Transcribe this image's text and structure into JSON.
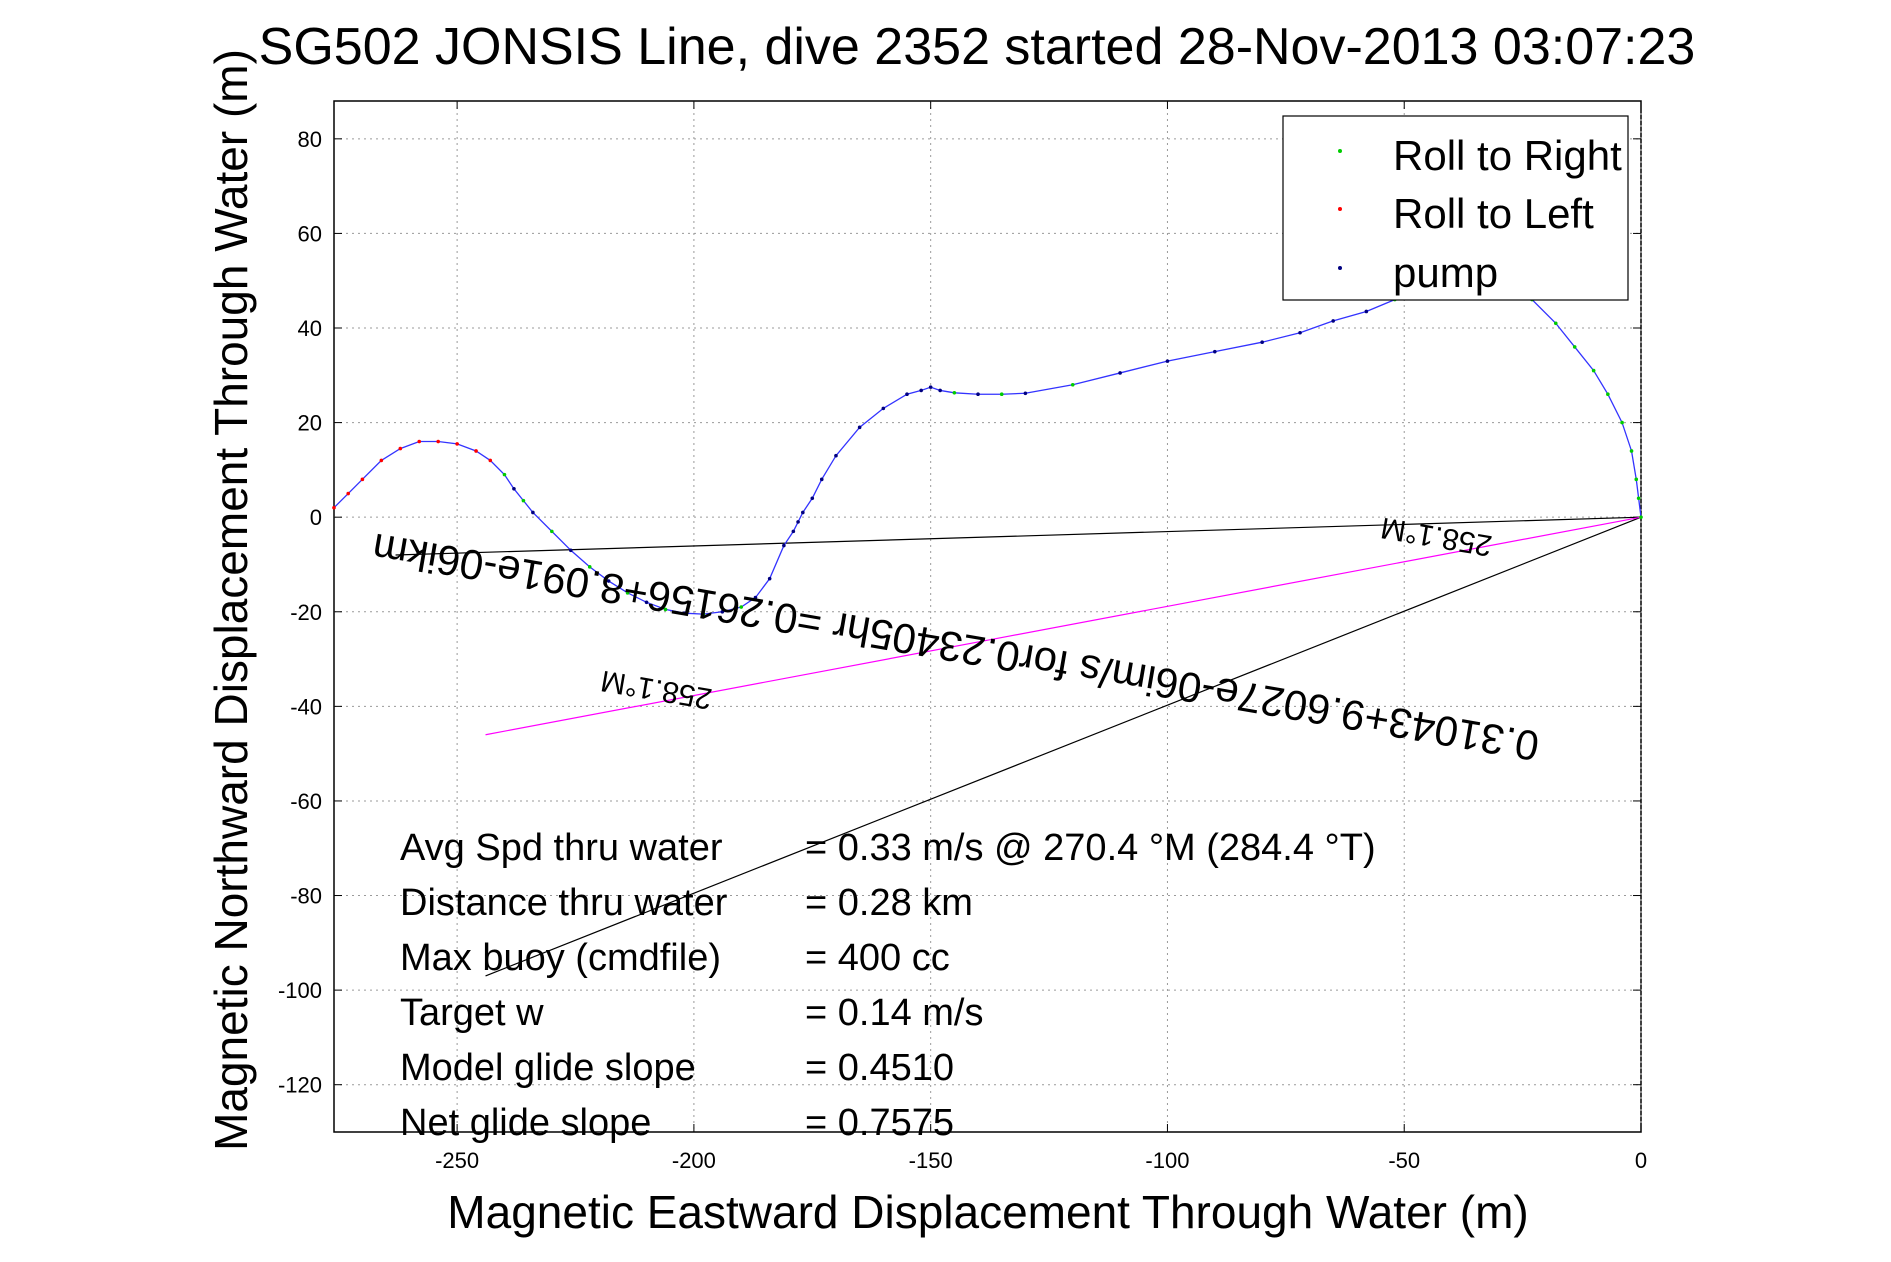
{
  "chart_data": {
    "type": "line",
    "title": "SG502 JONSIS Line, dive 2352 started 28-Nov-2013 03:07:23",
    "xlabel": "Magnetic Eastward Displacement Through Water (m)",
    "ylabel": "Magnetic Northward Displacement Through Water (m)",
    "xlim": [
      -276,
      0
    ],
    "ylim": [
      -130,
      88
    ],
    "xticks": [
      -250,
      -200,
      -150,
      -100,
      -50,
      0
    ],
    "yticks": [
      80,
      60,
      40,
      20,
      0,
      -20,
      -40,
      -60,
      -80,
      -100,
      -120
    ],
    "grid": true,
    "legend": {
      "position": "top-right",
      "entries": [
        {
          "label": "Roll to Right",
          "color": "#00cc00"
        },
        {
          "label": "Roll to Left",
          "color": "#ff0000"
        },
        {
          "label": "pump",
          "color": "#000080"
        }
      ]
    },
    "series": [
      {
        "color": "#3333ff",
        "x": [
          0,
          -0.5,
          -1,
          -2,
          -4,
          -7,
          -10,
          -14,
          -18,
          -23,
          -28,
          -34,
          -40,
          -46,
          -52,
          -58,
          -65,
          -72,
          -80,
          -90,
          -100,
          -110,
          -120,
          -130,
          -135,
          -140,
          -145,
          -148,
          -150,
          -152,
          -155,
          -160,
          -165,
          -170,
          -173,
          -175,
          -177,
          -178,
          -179,
          -181,
          -184,
          -187,
          -190,
          -194,
          -198,
          -202,
          -206,
          -210,
          -214,
          -218,
          -222,
          -226,
          -230,
          -234,
          -236,
          -238,
          -240,
          -243,
          -246,
          -250,
          -254,
          -258,
          -262,
          -266,
          -270,
          -273,
          -276
        ],
        "y": [
          0,
          4,
          8,
          14,
          20,
          26,
          31,
          36,
          41,
          46,
          49,
          52,
          51,
          49,
          46,
          43.5,
          41.5,
          39,
          37,
          35,
          33,
          30.5,
          28,
          26.2,
          26,
          26,
          26.3,
          26.8,
          27.5,
          26.8,
          26,
          23,
          19,
          13,
          8,
          4,
          1,
          -1,
          -3,
          -6,
          -13,
          -17,
          -19,
          -20,
          -20.5,
          -20.3,
          -19.5,
          -18,
          -16,
          -13.5,
          -10.5,
          -7,
          -3,
          1,
          3.5,
          6,
          9,
          12,
          14,
          15.5,
          16,
          16,
          14.5,
          12,
          8,
          5,
          2
        ]
      }
    ],
    "reference_lines": [
      {
        "color": "#000000",
        "x": [
          0,
          -263
        ],
        "y": [
          0,
          -8
        ]
      },
      {
        "color": "#000000",
        "x": [
          0,
          -244
        ],
        "y": [
          0,
          -97
        ]
      },
      {
        "color": "#ff00ff",
        "x": [
          0,
          -244
        ],
        "y": [
          0,
          -46
        ]
      }
    ],
    "annotations": {
      "rotated": [
        "0.31043+9.6027e-06im/s for0.23405hr =0.26156+8.091e-06ikm",
        "258.1°M",
        "258.1°M"
      ],
      "stats": [
        {
          "label": "Avg Spd thru water",
          "value": "=  0.33 m/s @ 270.4 °M (284.4 °T)"
        },
        {
          "label": "Distance thru water",
          "value": "=  0.28 km"
        },
        {
          "label": "Max buoy (cmdfile)",
          "value": "= 400 cc"
        },
        {
          "label": "Target w",
          "value": "= 0.14 m/s"
        },
        {
          "label": "Model glide slope",
          "value": "= 0.4510"
        },
        {
          "label": "Net glide slope",
          "value": "= 0.7575"
        }
      ]
    }
  }
}
